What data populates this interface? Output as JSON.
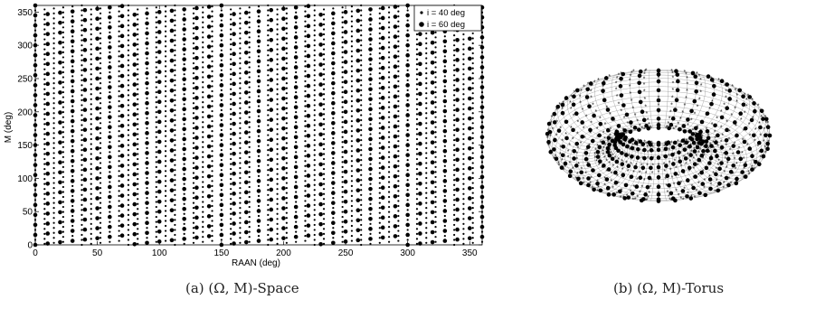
{
  "chart_data": [
    {
      "type": "scatter",
      "xlabel": "RAAN (deg)",
      "ylabel": "M (deg)",
      "xlim": [
        0,
        360
      ],
      "ylim": [
        0,
        360
      ],
      "xticks": [
        0,
        50,
        100,
        150,
        200,
        250,
        300,
        350
      ],
      "yticks": [
        0,
        50,
        100,
        150,
        200,
        250,
        300,
        350
      ],
      "grid": false,
      "legend_position": "top-right",
      "series": [
        {
          "name": "i = 40 deg",
          "marker": "small-dot",
          "color": "#000000",
          "x_step": 7.5,
          "y_step": 7.5,
          "lattice_slope": 0.2,
          "note_pattern": "dense lattice covering full domain"
        },
        {
          "name": "i = 60 deg",
          "marker": "large-dot",
          "color": "#000000",
          "x_step": 10,
          "y_step": 15,
          "lattice_slope": 0.2,
          "note_pattern": "coarser lattice of large dots"
        }
      ]
    },
    {
      "type": "scatter",
      "projection": "torus",
      "markers": [
        "asterisk",
        "large-dot"
      ]
    }
  ],
  "captions": {
    "a": "(a) (Ω, M)-Space",
    "b": "(b) (Ω, M)-Torus"
  }
}
